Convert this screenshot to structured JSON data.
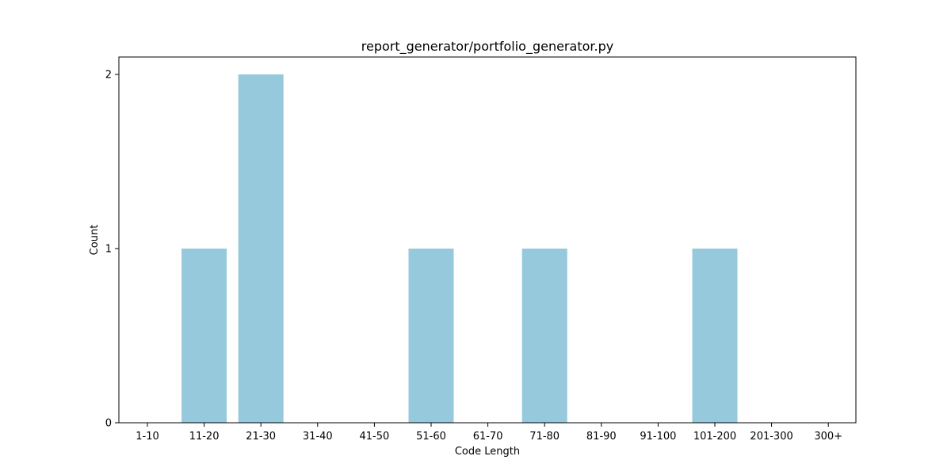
{
  "chart_data": {
    "type": "bar",
    "title": "report_generator/portfolio_generator.py",
    "xlabel": "Code Length",
    "ylabel": "Count",
    "categories": [
      "1-10",
      "11-20",
      "21-30",
      "31-40",
      "41-50",
      "51-60",
      "61-70",
      "71-80",
      "81-90",
      "91-100",
      "101-200",
      "201-300",
      "300+"
    ],
    "values": [
      0,
      1,
      2,
      0,
      0,
      1,
      0,
      1,
      0,
      0,
      1,
      0,
      0
    ],
    "ylim": [
      0,
      2.1
    ],
    "yticks": [
      0,
      1,
      2
    ],
    "bar_color": "#96c9dc",
    "grid": false,
    "legend": "none"
  }
}
